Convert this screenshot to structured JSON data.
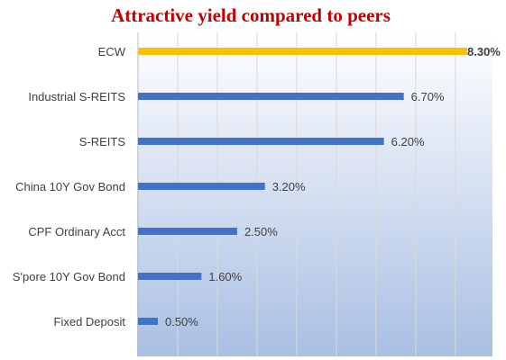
{
  "chart_data": {
    "type": "bar",
    "orientation": "horizontal",
    "title": "Attractive yield compared to peers",
    "categories": [
      "ECW",
      "Industrial S-REITS",
      "S-REITS",
      "China 10Y Gov Bond",
      "CPF Ordinary Acct",
      "S'pore 10Y Gov Bond",
      "Fixed Deposit"
    ],
    "values": [
      8.3,
      6.7,
      6.2,
      3.2,
      2.5,
      1.6,
      0.5
    ],
    "value_labels": [
      "8.30%",
      "6.70%",
      "6.20%",
      "3.20%",
      "2.50%",
      "1.60%",
      "0.50%"
    ],
    "bar_colors": [
      "#FFC000",
      "#4472C4",
      "#4472C4",
      "#4472C4",
      "#4472C4",
      "#4472C4",
      "#4472C4"
    ],
    "highlight_index": 0,
    "xlim": [
      0,
      9
    ],
    "grid": true,
    "colors": {
      "title": "#C00000",
      "background_top": "#FFFFFF",
      "background_bottom": "#A9BFE3",
      "gridline": "#D9D9D9",
      "text": "#404040"
    }
  }
}
